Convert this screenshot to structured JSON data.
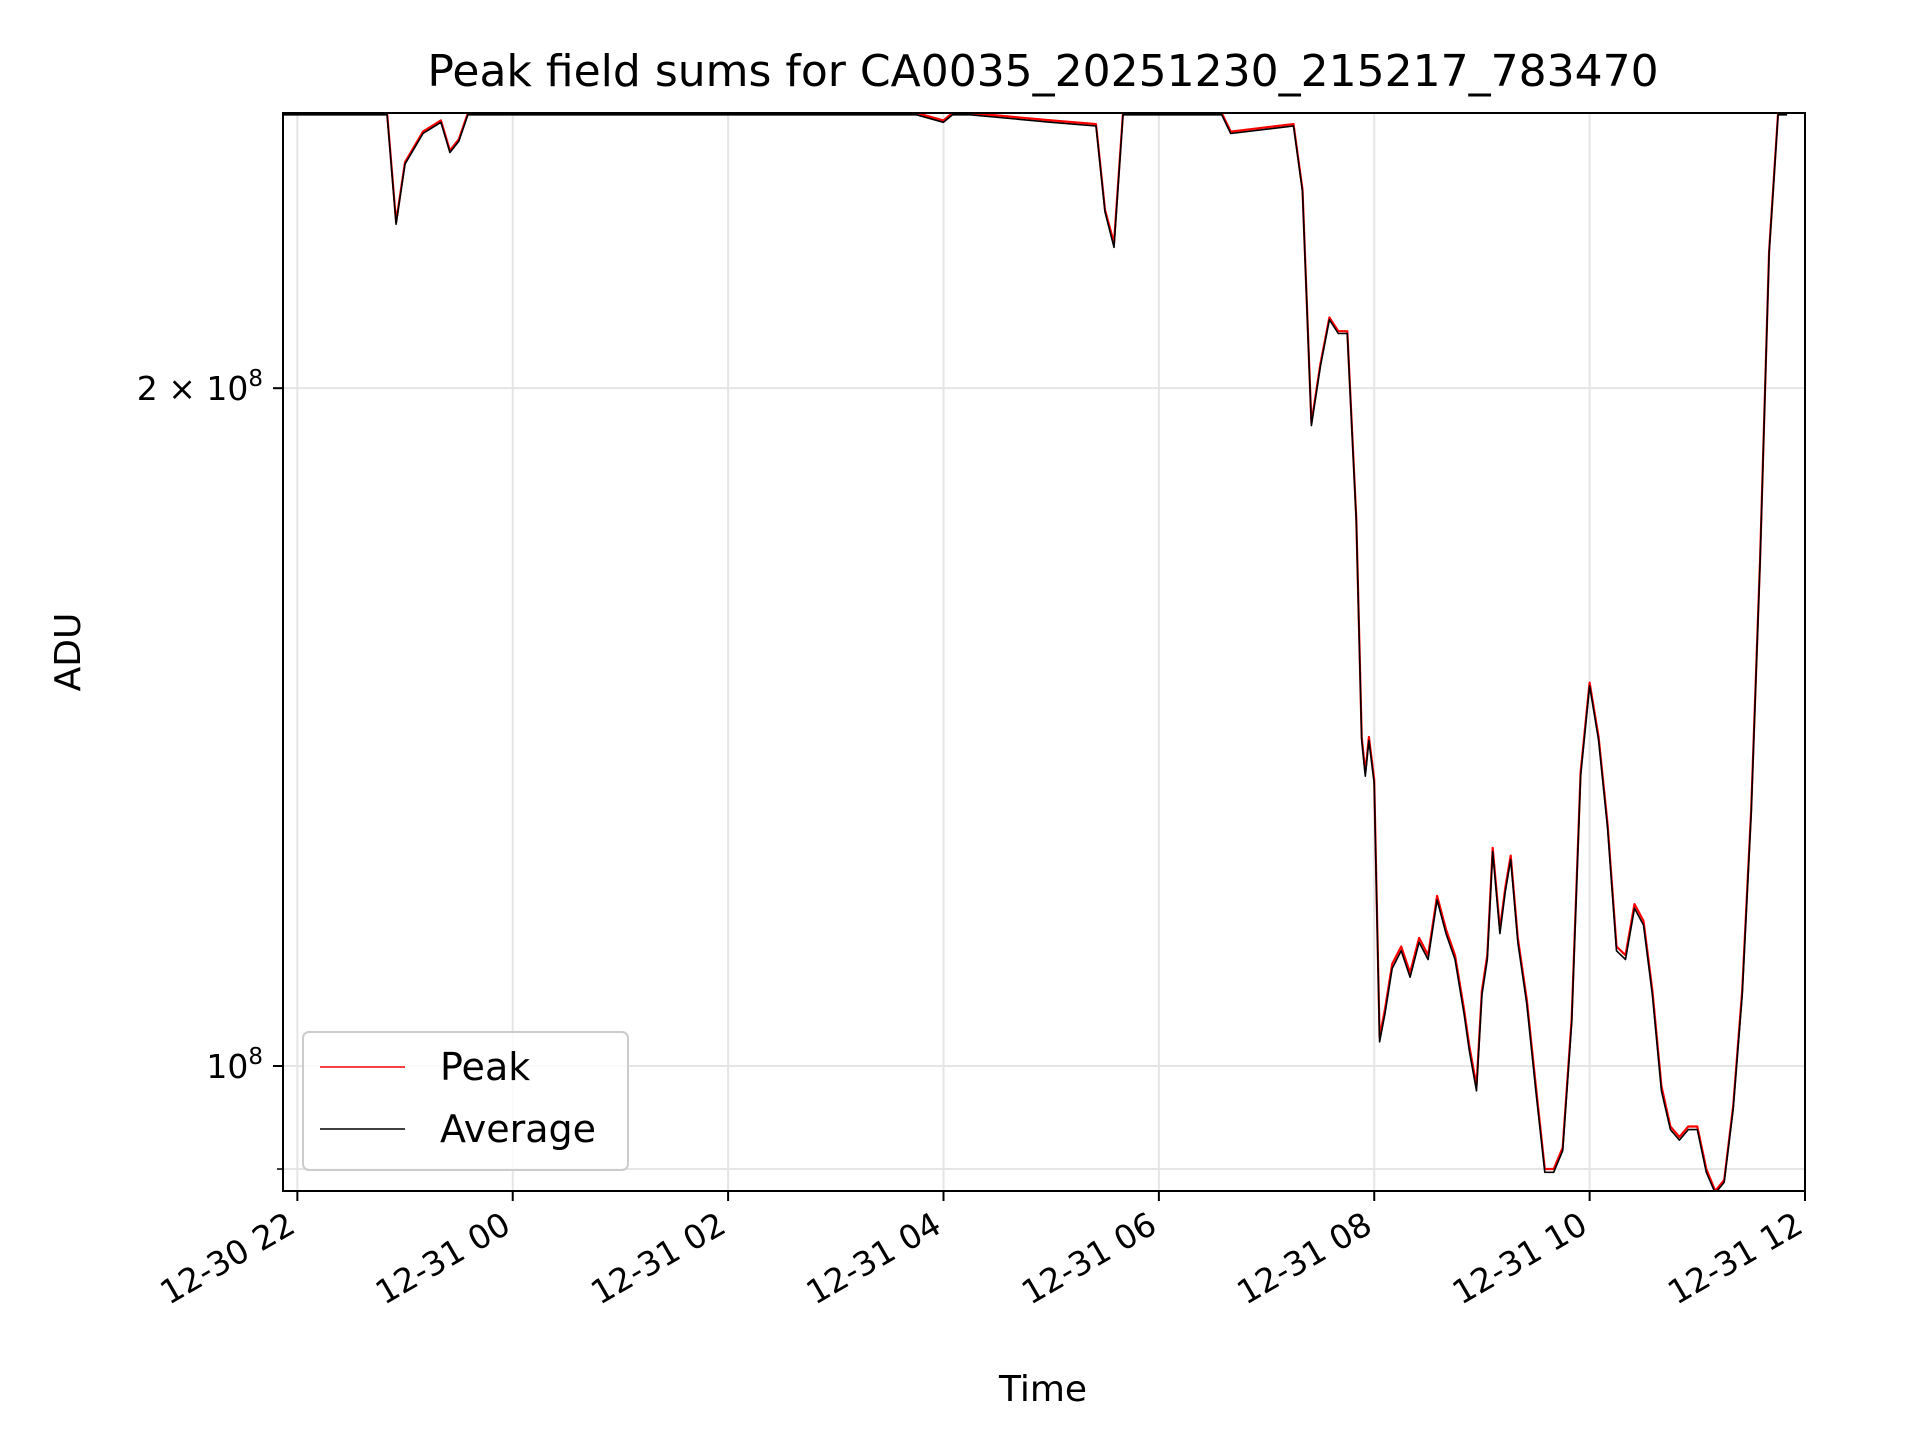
{
  "chart_data": {
    "type": "line",
    "title": "Peak field sums for CA0035_20251230_215217_783470",
    "xlabel": "Time",
    "ylabel": "ADU",
    "y_scale": "log",
    "grid": true,
    "legend_placement": "lower-left",
    "xlim": [
      "2025-12-30 21:52",
      "2025-12-31 12:00"
    ],
    "ylim": [
      88000000,
      265000000
    ],
    "x_ticks": [
      {
        "value": "2025-12-30 22:00",
        "label": "12-30 22"
      },
      {
        "value": "2025-12-31 00:00",
        "label": "12-31 00"
      },
      {
        "value": "2025-12-31 02:00",
        "label": "12-31 02"
      },
      {
        "value": "2025-12-31 04:00",
        "label": "12-31 04"
      },
      {
        "value": "2025-12-31 06:00",
        "label": "12-31 06"
      },
      {
        "value": "2025-12-31 08:00",
        "label": "12-31 08"
      },
      {
        "value": "2025-12-31 10:00",
        "label": "12-31 10"
      },
      {
        "value": "2025-12-31 12:00",
        "label": "12-31 12"
      }
    ],
    "y_ticks": [
      {
        "value": 100000000,
        "base": "10",
        "exp": "8",
        "mantissa": ""
      },
      {
        "value": 200000000,
        "base": "10",
        "exp": "8",
        "mantissa": "2 × "
      }
    ],
    "y_minor_ticks": [
      90000000
    ],
    "x": [
      "2025-12-30 21:52",
      "2025-12-30 22:50",
      "2025-12-30 22:55",
      "2025-12-30 23:00",
      "2025-12-30 23:10",
      "2025-12-30 23:20",
      "2025-12-30 23:25",
      "2025-12-30 23:30",
      "2025-12-30 23:35",
      "2025-12-30 23:40",
      "2025-12-31 03:45",
      "2025-12-31 04:00",
      "2025-12-31 04:05",
      "2025-12-31 04:15",
      "2025-12-31 05:00",
      "2025-12-31 05:25",
      "2025-12-31 05:30",
      "2025-12-31 05:35",
      "2025-12-31 05:40",
      "2025-12-31 05:45",
      "2025-12-31 06:35",
      "2025-12-31 06:40",
      "2025-12-31 07:15",
      "2025-12-31 07:20",
      "2025-12-31 07:25",
      "2025-12-31 07:30",
      "2025-12-31 07:35",
      "2025-12-31 07:40",
      "2025-12-31 07:45",
      "2025-12-31 07:50",
      "2025-12-31 07:53",
      "2025-12-31 07:55",
      "2025-12-31 07:57",
      "2025-12-31 08:00",
      "2025-12-31 08:03",
      "2025-12-31 08:06",
      "2025-12-31 08:10",
      "2025-12-31 08:15",
      "2025-12-31 08:20",
      "2025-12-31 08:25",
      "2025-12-31 08:30",
      "2025-12-31 08:35",
      "2025-12-31 08:40",
      "2025-12-31 08:45",
      "2025-12-31 08:50",
      "2025-12-31 08:53",
      "2025-12-31 08:57",
      "2025-12-31 09:00",
      "2025-12-31 09:03",
      "2025-12-31 09:06",
      "2025-12-31 09:10",
      "2025-12-31 09:13",
      "2025-12-31 09:16",
      "2025-12-31 09:20",
      "2025-12-31 09:25",
      "2025-12-31 09:30",
      "2025-12-31 09:35",
      "2025-12-31 09:40",
      "2025-12-31 09:45",
      "2025-12-31 09:50",
      "2025-12-31 09:55",
      "2025-12-31 10:00",
      "2025-12-31 10:05",
      "2025-12-31 10:10",
      "2025-12-31 10:15",
      "2025-12-31 10:20",
      "2025-12-31 10:25",
      "2025-12-31 10:30",
      "2025-12-31 10:35",
      "2025-12-31 10:40",
      "2025-12-31 10:45",
      "2025-12-31 10:50",
      "2025-12-31 10:55",
      "2025-12-31 11:00",
      "2025-12-31 11:05",
      "2025-12-31 11:10",
      "2025-12-31 11:15",
      "2025-12-31 11:20",
      "2025-12-31 11:25",
      "2025-12-31 11:30",
      "2025-12-31 11:35",
      "2025-12-31 11:40",
      "2025-12-31 11:45",
      "2025-12-31 11:50"
    ],
    "series": [
      {
        "name": "Peak",
        "color": "#ff0000",
        "values": [
          265000000,
          265000000,
          237000000,
          252000000,
          260000000,
          263000000,
          255000000,
          258000000,
          265000000,
          265000000,
          265000000,
          263000000,
          265000000,
          265000000,
          263000000,
          262000000,
          240000000,
          232000000,
          265000000,
          265000000,
          265000000,
          260000000,
          262000000,
          245000000,
          193000000,
          205000000,
          215000000,
          212000000,
          212000000,
          175000000,
          140000000,
          135000000,
          140000000,
          134000000,
          103000000,
          106000000,
          111000000,
          113000000,
          110000000,
          114000000,
          112000000,
          119000000,
          115000000,
          112000000,
          106000000,
          102000000,
          98000000,
          108000000,
          112000000,
          125000000,
          115000000,
          120000000,
          124000000,
          114000000,
          107000000,
          98000000,
          90000000,
          90000000,
          92000000,
          105000000,
          135000000,
          148000000,
          140000000,
          128000000,
          113000000,
          112000000,
          118000000,
          116000000,
          108000000,
          98000000,
          94000000,
          93000000,
          94000000,
          94000000,
          90000000,
          88000000,
          89000000,
          96000000,
          108000000,
          130000000,
          168000000,
          230000000,
          265000000,
          265000000
        ]
      },
      {
        "name": "Average",
        "color": "#000000",
        "values": [
          264500000,
          264500000,
          236500000,
          251500000,
          259500000,
          262500000,
          254500000,
          257500000,
          264500000,
          264500000,
          264500000,
          262500000,
          264500000,
          264500000,
          262500000,
          261500000,
          239500000,
          231000000,
          264500000,
          264500000,
          264500000,
          259500000,
          261500000,
          244500000,
          192500000,
          204500000,
          214500000,
          211500000,
          211500000,
          174500000,
          139500000,
          134500000,
          139500000,
          133500000,
          102500000,
          105500000,
          110500000,
          112500000,
          109500000,
          113500000,
          111500000,
          118500000,
          114500000,
          111500000,
          105500000,
          101500000,
          97500000,
          107500000,
          111500000,
          124500000,
          114500000,
          119500000,
          123500000,
          113500000,
          106500000,
          97500000,
          89700000,
          89700000,
          91700000,
          104500000,
          134500000,
          147500000,
          139500000,
          127500000,
          112500000,
          111500000,
          117500000,
          115500000,
          107500000,
          97500000,
          93700000,
          92700000,
          93700000,
          93700000,
          89700000,
          87800000,
          88800000,
          95700000,
          107500000,
          129500000,
          167500000,
          229500000,
          264500000,
          264500000
        ]
      }
    ]
  }
}
